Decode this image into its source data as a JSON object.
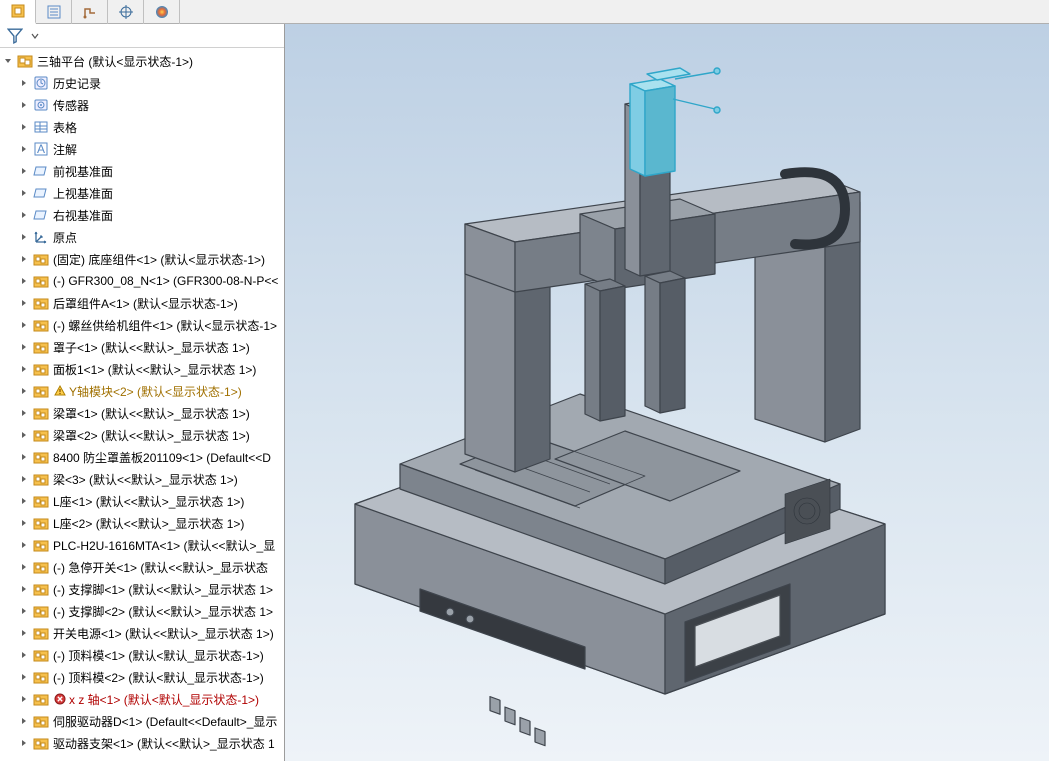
{
  "tabs": [
    {
      "name": "assembly-tab"
    },
    {
      "name": "list-tab"
    },
    {
      "name": "sketch-tab"
    },
    {
      "name": "target-tab"
    },
    {
      "name": "appearance-tab"
    }
  ],
  "tree": {
    "root": {
      "label": "三轴平台  (默认<显示状态-1>)"
    },
    "nodes": [
      {
        "icon": "history",
        "label": "历史记录"
      },
      {
        "icon": "sensor",
        "label": "传感器"
      },
      {
        "icon": "table",
        "label": "表格"
      },
      {
        "icon": "annotation",
        "label": "注解"
      },
      {
        "icon": "plane",
        "label": "前视基准面"
      },
      {
        "icon": "plane",
        "label": "上视基准面"
      },
      {
        "icon": "plane",
        "label": "右视基准面"
      },
      {
        "icon": "origin",
        "label": "原点"
      },
      {
        "icon": "asm",
        "label": "(固定) 底座组件<1> (默认<显示状态-1>)"
      },
      {
        "icon": "asm",
        "label": "(-) GFR300_08_N<1> (GFR300-08-N-P<<"
      },
      {
        "icon": "asm",
        "label": "后罩组件A<1> (默认<显示状态-1>)"
      },
      {
        "icon": "asm",
        "label": "(-) 螺丝供给机组件<1> (默认<显示状态-1>"
      },
      {
        "icon": "asm",
        "label": "罩子<1> (默认<<默认>_显示状态 1>)"
      },
      {
        "icon": "asm",
        "label": "面板1<1> (默认<<默认>_显示状态 1>)"
      },
      {
        "icon": "asm",
        "badge": "warn",
        "label": "Y轴模块<2> (默认<显示状态-1>)",
        "cls": "warn"
      },
      {
        "icon": "asm",
        "label": "梁罩<1> (默认<<默认>_显示状态 1>)"
      },
      {
        "icon": "asm",
        "label": "梁罩<2> (默认<<默认>_显示状态 1>)"
      },
      {
        "icon": "asm",
        "label": "8400 防尘罩盖板201109<1> (Default<<D"
      },
      {
        "icon": "asm",
        "label": "梁<3> (默认<<默认>_显示状态 1>)"
      },
      {
        "icon": "asm",
        "label": "L座<1> (默认<<默认>_显示状态 1>)"
      },
      {
        "icon": "asm",
        "label": "L座<2> (默认<<默认>_显示状态 1>)"
      },
      {
        "icon": "asm",
        "label": "PLC-H2U-1616MTA<1> (默认<<默认>_显"
      },
      {
        "icon": "asm",
        "label": "(-) 急停开关<1> (默认<<默认>_显示状态 "
      },
      {
        "icon": "asm",
        "label": "(-) 支撑脚<1> (默认<<默认>_显示状态 1>"
      },
      {
        "icon": "asm",
        "label": "(-) 支撑脚<2> (默认<<默认>_显示状态 1>"
      },
      {
        "icon": "asm",
        "label": "开关电源<1> (默认<<默认>_显示状态 1>)"
      },
      {
        "icon": "asm",
        "label": "(-) 顶料模<1> (默认<默认_显示状态-1>)"
      },
      {
        "icon": "asm",
        "label": "(-) 顶料模<2> (默认<默认_显示状态-1>)"
      },
      {
        "icon": "asm",
        "badge": "err",
        "label": "x z 轴<1> (默认<默认_显示状态-1>)",
        "cls": "err"
      },
      {
        "icon": "asm",
        "label": "伺服驱动器D<1> (Default<<Default>_显示"
      },
      {
        "icon": "asm",
        "label": "驱动器支架<1> (默认<<默认>_显示状态 1"
      }
    ]
  },
  "viewport": {
    "bg_top": "#bdd0e4",
    "bg_mid": "#dbe6f0",
    "bg_bot": "#eef3f8",
    "model": {
      "body_fill": "#8a9099",
      "body_stroke": "#3e444c",
      "body_light": "#b6bcc4",
      "body_dark": "#5f666f",
      "highlight_stroke": "#2fa6c9",
      "highlight_fill": "#7fcde4",
      "screen_fill": "#d8dde2",
      "screen_stroke": "#4a4f55"
    }
  }
}
